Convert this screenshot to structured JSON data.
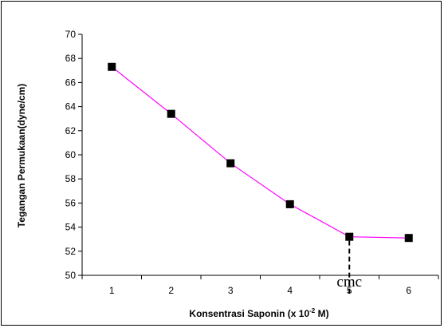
{
  "chart_data": {
    "type": "line",
    "title": "",
    "xlabel_parts": {
      "prefix": "Konsentrasi Saponin (x 10",
      "exponent": "-2",
      "suffix": " M)"
    },
    "ylabel": "Tegangan Permukaan(dyne/cm)",
    "x": [
      1,
      2,
      3,
      4,
      5,
      6
    ],
    "series": [
      {
        "values": [
          67.3,
          63.4,
          59.3,
          55.9,
          53.2,
          53.1
        ],
        "color": "#ff00ff",
        "marker": "square",
        "marker_color": "#000000"
      }
    ],
    "xlim": [
      0.5,
      6.5
    ],
    "ylim": [
      50,
      70
    ],
    "y_ticks": [
      50,
      52,
      54,
      56,
      58,
      60,
      62,
      64,
      66,
      68,
      70
    ],
    "x_ticks": [
      1,
      2,
      3,
      4,
      5,
      6
    ],
    "grid": false,
    "legend": "none",
    "annotations": [
      {
        "text": "cmc",
        "x": 5,
        "style": "dashed vertical line from point to x-axis"
      }
    ]
  }
}
